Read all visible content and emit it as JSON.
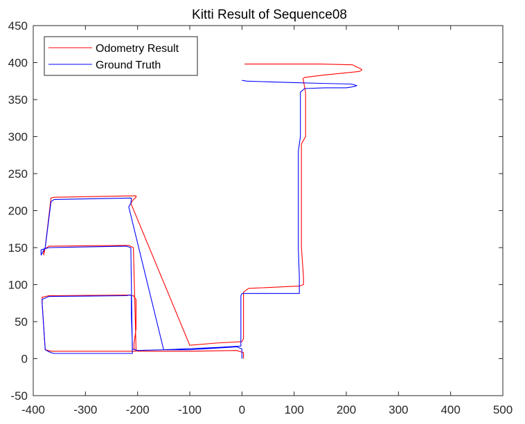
{
  "chart_data": {
    "type": "line",
    "title": "Kitti Result of Sequence08",
    "xlabel": "",
    "ylabel": "",
    "xlim": [
      -400,
      500
    ],
    "ylim": [
      -50,
      450
    ],
    "x_ticks": [
      -400,
      -300,
      -200,
      -100,
      0,
      100,
      200,
      300,
      400,
      500
    ],
    "y_ticks": [
      -50,
      0,
      50,
      100,
      150,
      200,
      250,
      300,
      350,
      400,
      450
    ],
    "grid": false,
    "legend_position": "top-left",
    "series": [
      {
        "name": "Odometry Result",
        "color": "#ff0000",
        "x": [
          3,
          3,
          -10,
          -100,
          -150,
          -200,
          -207,
          -207,
          -203,
          -203,
          -208,
          -217,
          -370,
          -383,
          -383,
          -377,
          -366,
          -355,
          -203,
          -203,
          -208,
          -217,
          -370,
          -380,
          -380,
          -377,
          -366,
          -360,
          -203,
          -203,
          -208,
          -213,
          -100,
          -50,
          0,
          3,
          3,
          13,
          110,
          118,
          118,
          114,
          114,
          122,
          122,
          118,
          117,
          120,
          155,
          225,
          230,
          227,
          220,
          212,
          150,
          100,
          55,
          15,
          5
        ],
        "y": [
          0,
          8,
          11,
          10,
          10,
          10,
          13,
          20,
          40,
          80,
          85,
          86,
          85,
          83,
          76,
          12,
          10,
          10,
          10,
          13,
          150,
          153,
          152,
          147,
          140,
          150,
          217,
          218,
          220,
          218,
          215,
          210,
          18,
          21,
          23,
          27,
          90,
          95,
          98,
          100,
          110,
          150,
          290,
          300,
          360,
          375,
          378,
          380,
          383,
          388,
          390,
          392,
          394,
          397,
          398,
          398,
          398,
          398,
          398
        ]
      },
      {
        "name": "Ground Truth",
        "color": "#0000ff",
        "x": [
          0,
          0,
          -10,
          -100,
          -150,
          -200,
          -210,
          -210,
          -212,
          -212,
          -215,
          -222,
          -370,
          -383,
          -383,
          -377,
          -366,
          -360,
          -210,
          -210,
          -213,
          -222,
          -370,
          -385,
          -385,
          -377,
          -366,
          -360,
          -212,
          -212,
          -213,
          -217,
          -150,
          -50,
          -2,
          -2,
          0,
          5,
          90,
          110,
          110,
          108,
          108,
          112,
          112,
          112,
          120,
          160,
          200,
          210,
          217,
          220,
          215,
          210,
          150,
          100,
          50,
          10,
          0
        ],
        "y": [
          0,
          13,
          16,
          12,
          12,
          11,
          13,
          20,
          60,
          85,
          86,
          85,
          84,
          80,
          75,
          12,
          8,
          7,
          7,
          10,
          150,
          152,
          150,
          147,
          140,
          150,
          212,
          215,
          217,
          215,
          210,
          205,
          12,
          15,
          17,
          85,
          88,
          88,
          88,
          88,
          110,
          150,
          280,
          300,
          340,
          360,
          365,
          366,
          366,
          367,
          368,
          369,
          370,
          371,
          372,
          373,
          374,
          375,
          376
        ]
      }
    ]
  }
}
